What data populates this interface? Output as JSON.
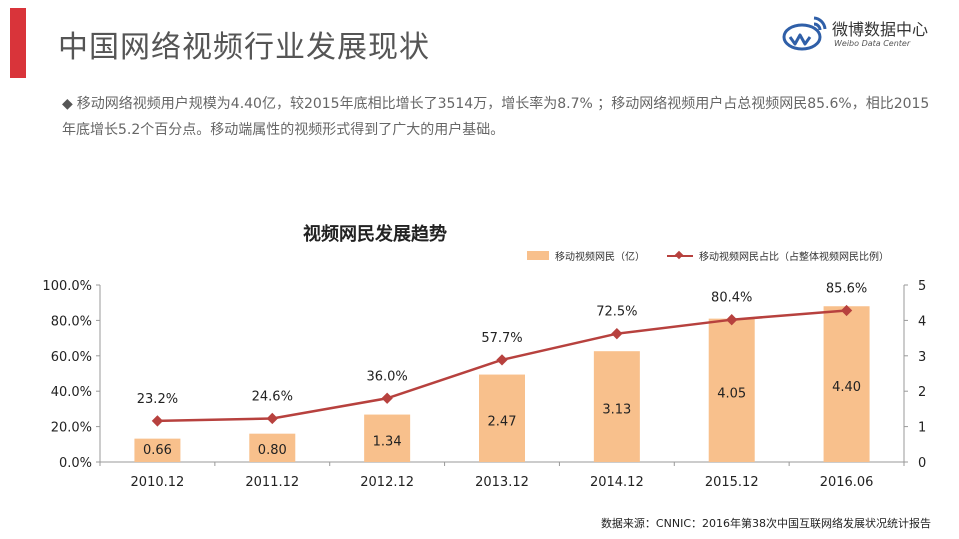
{
  "header": {
    "title": "中国网络视频行业发展现状",
    "logo_text": "微博数据中心",
    "logo_sub": "Weibo Data Center"
  },
  "summary": {
    "bullet": "◆",
    "text": "移动网络视频用户规模为4.40亿，较2015年底相比增长了3514万，增长率为8.7% ；移动网络视频用户占总视频网民85.6%，相比2015年底增长5.2个百分点。移动端属性的视频形式得到了广大的用户基础。"
  },
  "colors": {
    "accent": "#d9343a",
    "bar": "#f8c08c",
    "line": "#b7413e"
  },
  "chart_data": {
    "type": "bar",
    "title": "视频网民发展趋势",
    "categories": [
      "2010.12",
      "2011.12",
      "2012.12",
      "2013.12",
      "2014.12",
      "2015.12",
      "2016.06"
    ],
    "series": [
      {
        "name": "移动视频网民（亿）",
        "type": "bar",
        "axis": "right",
        "values": [
          0.66,
          0.8,
          1.34,
          2.47,
          3.13,
          4.05,
          4.4
        ],
        "labels": [
          "0.66",
          "0.80",
          "1.34",
          "2.47",
          "3.13",
          "4.05",
          "4.40"
        ]
      },
      {
        "name": "移动视频网民占比（占整体视频网民比例）",
        "type": "line",
        "axis": "left",
        "values": [
          23.2,
          24.6,
          36.0,
          57.7,
          72.5,
          80.4,
          85.6
        ],
        "labels": [
          "23.2%",
          "24.6%",
          "36.0%",
          "57.7%",
          "72.5%",
          "80.4%",
          "85.6%"
        ]
      }
    ],
    "y_left": {
      "ylim": [
        0,
        100
      ],
      "ticks": [
        "0.0%",
        "20.0%",
        "40.0%",
        "60.0%",
        "80.0%",
        "100.0%"
      ]
    },
    "y_right": {
      "ylim": [
        0,
        5
      ],
      "ticks": [
        "0",
        "1",
        "2",
        "3",
        "4",
        "5"
      ]
    },
    "legend": "top-right",
    "grid": false
  },
  "footer": {
    "source": "数据来源：CNNIC：2016年第38次中国互联网络发展状况统计报告"
  }
}
